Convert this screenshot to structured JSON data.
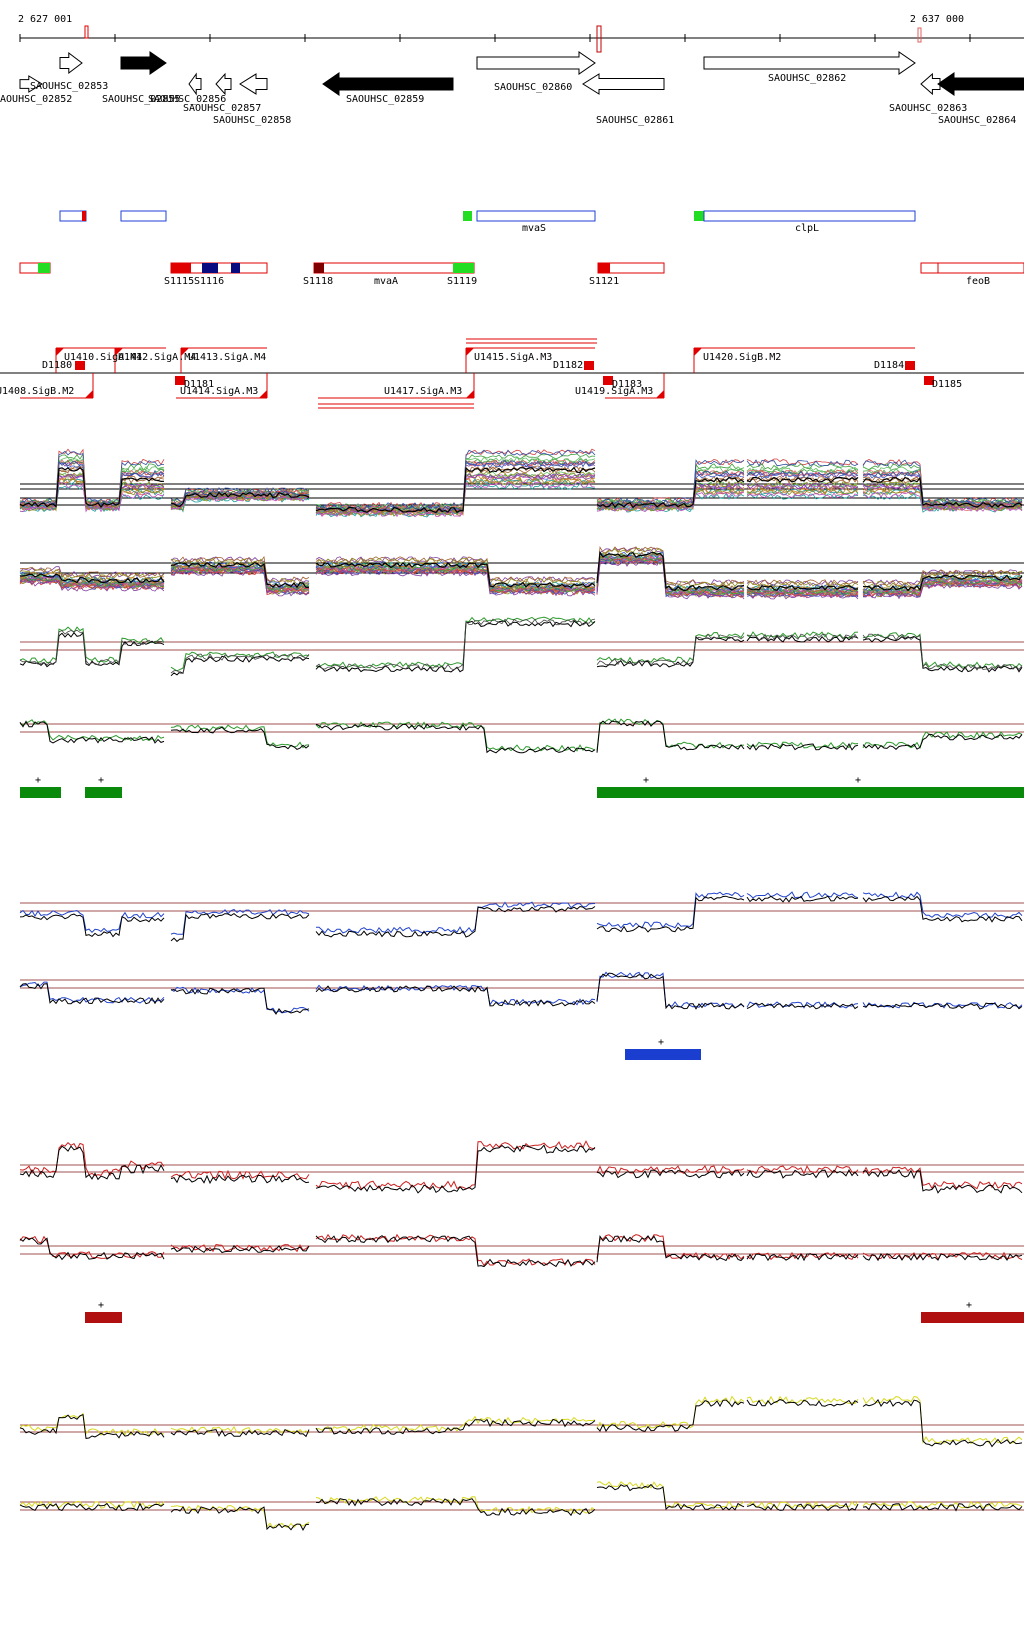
{
  "coordinates": {
    "start": "2 627 001",
    "end": "2 637 000"
  },
  "colors": {
    "gene_fill": "#000000",
    "gene_outline": "#000000",
    "feature_blue": "#1f3fd8",
    "feature_red": "#e00000",
    "feature_green": "#22dd22",
    "feature_navy": "#0a0a80",
    "feature_darkred": "#800000",
    "green_line": "#2e9a2e",
    "blue_line": "#2244cc",
    "red_line": "#cc2020",
    "yellow_line": "#d8d820",
    "threshold_line": "#a05050",
    "seg_green": "#0a8a0a",
    "seg_blue": "#1a3fd0",
    "seg_red": "#b01010"
  },
  "genes": [
    {
      "id": "SAOUHSC_02852",
      "label": "SAOUHSC_02852",
      "strand": "+",
      "filled": false
    },
    {
      "id": "SAOUHSC_02853",
      "label": "SAOUHSC_02853",
      "strand": "+",
      "filled": false
    },
    {
      "id": "SAOUHSC_02855",
      "label": "SAOUHSC_02855",
      "strand": "+",
      "filled": true
    },
    {
      "id": "SAOUHSC_02856",
      "label": "SAOUHSC_02856",
      "strand": "-",
      "filled": false
    },
    {
      "id": "SAOUHSC_02857",
      "label": "SAOUHSC_02857",
      "strand": "-",
      "filled": false
    },
    {
      "id": "SAOUHSC_02858",
      "label": "SAOUHSC_02858",
      "strand": "-",
      "filled": false
    },
    {
      "id": "SAOUHSC_02859",
      "label": "SAOUHSC_02859",
      "strand": "-",
      "filled": true
    },
    {
      "id": "SAOUHSC_02860",
      "label": "SAOUHSC_02860",
      "strand": "+",
      "filled": false
    },
    {
      "id": "SAOUHSC_02861",
      "label": "SAOUHSC_02861",
      "strand": "-",
      "filled": false
    },
    {
      "id": "SAOUHSC_02862",
      "label": "SAOUHSC_02862",
      "strand": "+",
      "filled": false
    },
    {
      "id": "SAOUHSC_02863",
      "label": "SAOUHSC_02863",
      "strand": "-",
      "filled": false
    },
    {
      "id": "SAOUHSC_02864",
      "label": "SAOUHSC_02864",
      "strand": "-",
      "filled": true
    }
  ],
  "gene_names": {
    "mvaS": "mvaS",
    "clpL": "clpL",
    "mvaA": "mvaA",
    "feoB": "feoB"
  },
  "srna_features": [
    "S1115",
    "S1116",
    "S1118",
    "S1119",
    "S1121"
  ],
  "upshift_features": [
    "U1410.SigA.M4",
    "U1412.SigA.M4",
    "U1413.SigA.M4",
    "U1415.SigA.M3",
    "U1420.SigB.M2",
    "U1408.SigB.M2",
    "U1414.SigA.M3",
    "U1417.SigA.M3",
    "U1419.SigA.M3"
  ],
  "downshift_features": [
    "D1180",
    "D1181",
    "D1182",
    "D1183",
    "D1184",
    "D1185"
  ],
  "segment_marks": {
    "plus": "+"
  }
}
